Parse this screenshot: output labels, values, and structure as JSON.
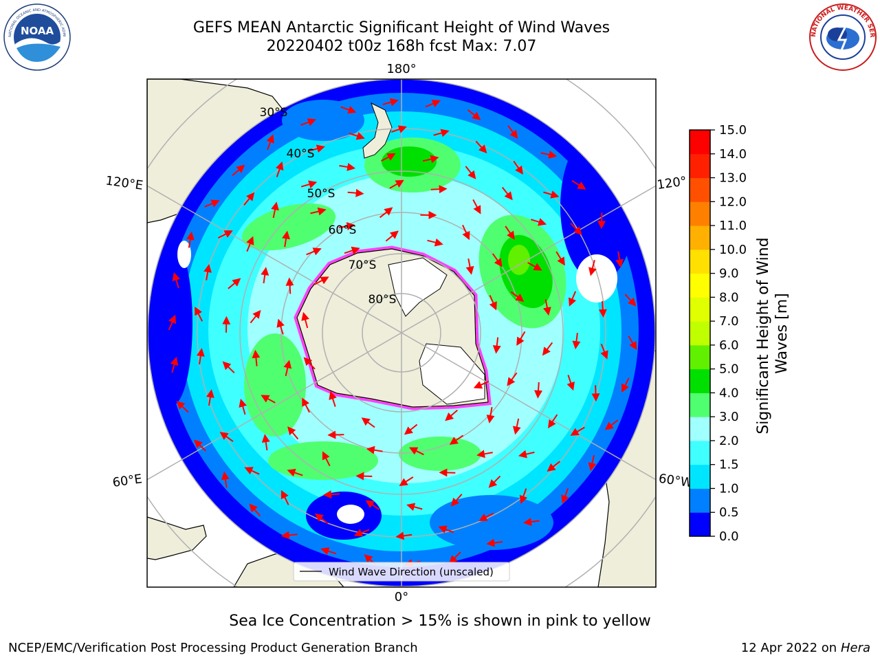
{
  "header": {
    "title_line1": "GEFS MEAN Antarctic Significant Height of Wind Waves",
    "title_line2": "20220402 t00z 168h fcst   Max: 7.07"
  },
  "logos": {
    "noaa_text": "NOAA",
    "noaa_ring": "NATIONAL OCEANIC AND ATMOSPHERIC ADMINISTRATION · U.S. DEPARTMENT OF COMMERCE",
    "nws_ring": "NATIONAL WEATHER SERVICE"
  },
  "map": {
    "longitude_labels": [
      "180°",
      "120°E",
      "120°",
      "60°E",
      "60°W",
      "0°"
    ],
    "latitude_labels": [
      "30°S",
      "40°S",
      "50°S",
      "60°S",
      "70°S",
      "80°S"
    ],
    "legend_label": "Wind Wave Direction (unscaled)",
    "land_color": "#efeedb",
    "arrow_color": "#ff0000"
  },
  "chart_data": {
    "type": "heatmap",
    "colorbar_label_line1": "Significant Height of Wind",
    "colorbar_label_line2": "Waves [m]",
    "colorbar_ticks": [
      "0.0",
      "0.5",
      "1.0",
      "1.5",
      "2.0",
      "3.0",
      "4.0",
      "5.0",
      "6.0",
      "7.0",
      "8.0",
      "9.0",
      "10.0",
      "11.0",
      "12.0",
      "13.0",
      "14.0",
      "15.0"
    ],
    "colorbar_colors": [
      "#0000ff",
      "#0080ff",
      "#00e5ff",
      "#40ffff",
      "#a0ffff",
      "#50ff70",
      "#00e000",
      "#60f000",
      "#c0ff00",
      "#e0ff00",
      "#ffff00",
      "#ffe000",
      "#ffb000",
      "#ff8000",
      "#ff5000",
      "#ff2000",
      "#ff0000"
    ],
    "max_value": 7.07
  },
  "notes": {
    "sea_ice": "Sea Ice Concentration > 15% is shown in pink to yellow"
  },
  "footer": {
    "left": "NCEP/EMC/Verification Post Processing Product Generation Branch",
    "right_date": "12 Apr 2022 on ",
    "right_host": "Hera"
  }
}
